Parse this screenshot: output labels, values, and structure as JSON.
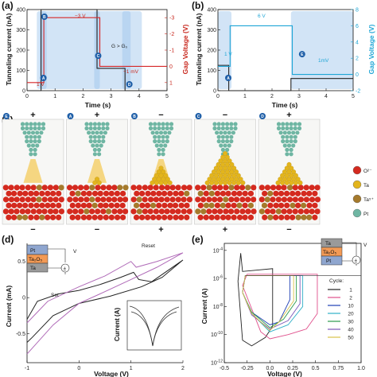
{
  "panels": {
    "a": {
      "label": "(a)",
      "ylabel_left": "Tunneling current (nA)",
      "ylabel_right": "Gap Voltage (V)",
      "xlabel": "Time (s)",
      "annotations": {
        "v_high": "−3 V",
        "v_low": "1 V",
        "v_mid": "−1 mV",
        "gap": "G > G₀"
      },
      "steps": [
        "A",
        "B",
        "C",
        "D"
      ]
    },
    "b": {
      "label": "(b)",
      "ylabel_left": "Tunneling current (nA)",
      "ylabel_right": "Gap Voltage (V)",
      "xlabel": "Time (s)",
      "annotations": {
        "v_high": "6 V",
        "v_low": "1 V",
        "v_mid": "1mV"
      },
      "steps": [
        "A",
        "E"
      ]
    },
    "c": {
      "label": "(c)",
      "frames": [
        {
          "step": "E",
          "top": "+",
          "bottom": "−"
        },
        {
          "step": "A",
          "top": "+",
          "bottom": "−"
        },
        {
          "step": "B",
          "top": "−",
          "bottom": "+"
        },
        {
          "step": "C",
          "top": "−",
          "bottom": "+"
        },
        {
          "step": "D",
          "top": "+",
          "bottom": "−"
        }
      ],
      "legend": [
        {
          "label": "O²⁻",
          "color": "#d42a1f"
        },
        {
          "label": "Ta",
          "color": "#e3b51c"
        },
        {
          "label": "Ta⁵⁺",
          "color": "#a57a2c"
        },
        {
          "label": "Pt",
          "color": "#6fb6a3"
        }
      ]
    },
    "d": {
      "label": "(d)",
      "ylabel": "Current (mA)",
      "xlabel": "Voltage (V)",
      "ann_reset": "Reset",
      "ann_set": "Set",
      "inset_ylabel": "Current (A)",
      "stack": [
        "Pt",
        "Ta₂O₅",
        "Ta"
      ],
      "source_symbol": "±",
      "meter_symbol": "V"
    },
    "e": {
      "label": "(e)",
      "ylabel": "Current (A)",
      "xlabel": "Voltage (V)",
      "legend_title": "Cycle:",
      "stack": [
        "Ta",
        "Ta₂O₅",
        "Pt"
      ],
      "source_symbol": "±",
      "meter_symbol": "V"
    }
  },
  "chart_data": [
    {
      "type": "line",
      "title": "",
      "xlabel": "Time (s)",
      "ylabel": "Tunneling current (nA)",
      "y2label": "Gap Voltage (V)",
      "xlim": [
        0,
        5
      ],
      "ylim": [
        0,
        400
      ],
      "y2lim": [
        -3.5,
        1.5
      ],
      "xticks": [
        0,
        1,
        2,
        3,
        4,
        5
      ],
      "yticks": [
        0,
        100,
        200,
        300,
        400
      ],
      "y2ticks": [
        -3,
        -2,
        -1,
        0,
        1
      ],
      "y2ticks_reversed": true,
      "series": [
        {
          "color": "#222222",
          "x": [
            0,
            0.5,
            0.5,
            2.5,
            2.5,
            3.5,
            3.5,
            5
          ],
          "y": [
            0,
            0,
            400,
            400,
            110,
            110,
            0,
            0
          ]
        },
        {
          "color": "#d62728",
          "x": [
            0,
            0.6,
            0.6,
            2.6,
            2.6,
            3.6,
            3.6,
            5
          ],
          "y": [
            1,
            1,
            -3,
            -3,
            0,
            0,
            0,
            0
          ]
        }
      ],
      "regions": [
        {
          "label": "A",
          "x": [
            0.35,
            0.7
          ]
        },
        {
          "label": "B",
          "x": [
            0.45,
            2.6
          ]
        },
        {
          "label": "C",
          "x": [
            2.4,
            3.7
          ]
        },
        {
          "label": "D",
          "x": [
            3.4,
            4.1
          ]
        }
      ]
    },
    {
      "type": "line",
      "title": "",
      "xlabel": "Time (s)",
      "ylabel": "Tunneling current (nA)",
      "y2label": "Gap Voltage (V)",
      "xlim": [
        0,
        5
      ],
      "ylim": [
        0,
        400
      ],
      "y2lim": [
        -2,
        8
      ],
      "xticks": [
        0,
        1,
        2,
        3,
        4,
        5
      ],
      "yticks": [
        0,
        100,
        200,
        300,
        400
      ],
      "y2ticks": [
        -2,
        0,
        2,
        4,
        6,
        8
      ],
      "series": [
        {
          "color": "#222222",
          "x": [
            0,
            0.4,
            0.4,
            2.7,
            2.7,
            5
          ],
          "y": [
            125,
            125,
            0,
            0,
            60,
            60
          ]
        },
        {
          "color": "#1fa6d6",
          "x": [
            0,
            0.45,
            0.45,
            2.75,
            2.75,
            5
          ],
          "y": [
            1,
            1,
            6,
            6,
            0,
            0
          ]
        }
      ],
      "regions": [
        {
          "label": "A",
          "x": [
            0,
            0.5
          ]
        },
        {
          "label": "E",
          "x": [
            2.7,
            5
          ]
        }
      ]
    },
    {
      "type": "line",
      "title": "",
      "xlabel": "Voltage (V)",
      "ylabel": "Current (mA)",
      "xlim": [
        -1,
        2
      ],
      "ylim": [
        -0.9,
        0.75
      ],
      "xticks": [
        -1,
        0,
        1,
        2
      ],
      "yticks": [
        -0.5,
        0,
        0.5
      ],
      "series": [
        {
          "color": "#222222",
          "x": [
            -1,
            -0.8,
            -0.4,
            0,
            0.4,
            0.8,
            1.05,
            1.15,
            1.4,
            2,
            1.6,
            1.2,
            0.6,
            0,
            -0.5,
            -0.9,
            -1
          ],
          "y": [
            -0.3,
            -0.05,
            0.05,
            0.1,
            0.18,
            0.28,
            0.35,
            0.25,
            0.22,
            0.52,
            0.28,
            0.15,
            0.02,
            -0.08,
            -0.25,
            -0.55,
            -0.62
          ]
        },
        {
          "color": "#b06bb8",
          "x": [
            -1,
            -0.6,
            0,
            0.5,
            1.0,
            1.1,
            1.5,
            2,
            1.5,
            1,
            0.4,
            0,
            -0.5,
            -1
          ],
          "y": [
            -0.35,
            -0.05,
            0.15,
            0.3,
            0.5,
            0.42,
            0.5,
            0.62,
            0.42,
            0.25,
            0.05,
            -0.08,
            -0.38,
            -0.78
          ]
        }
      ]
    },
    {
      "type": "line",
      "title": "",
      "xlabel": "Voltage (V)",
      "ylabel": "Current (A)",
      "log_y": true,
      "xlim": [
        -0.5,
        1.0
      ],
      "ylim_exp": [
        -12,
        -3.5
      ],
      "xticks": [
        -0.5,
        -0.25,
        0,
        0.25,
        0.5,
        0.75,
        1.0
      ],
      "yticks_exp": [
        -12,
        -10,
        -8,
        -6,
        -4
      ],
      "legend_position": "right",
      "series": [
        {
          "name": "1",
          "color": "#222222",
          "x": [
            -0.35,
            -0.32,
            -0.3,
            0.03,
            0.03,
            -0.05,
            -0.2,
            -0.3,
            -0.35
          ],
          "y_exp": [
            -6.2,
            -4.2,
            -5.5,
            -5.3,
            -9.4,
            -10.2,
            -10.8,
            -10.4,
            -6.2
          ]
        },
        {
          "name": "2",
          "color": "#e0508c",
          "x": [
            -0.3,
            -0.25,
            0.52,
            0.52,
            0.4,
            0.2,
            0,
            -0.1,
            -0.3
          ],
          "y_exp": [
            -6.5,
            -5.7,
            -5.7,
            -8.5,
            -9.6,
            -10,
            -10.3,
            -9.8,
            -6.5
          ]
        },
        {
          "name": "10",
          "color": "#1f3fb4",
          "x": [
            -0.3,
            -0.27,
            0.22,
            0.22,
            0.1,
            0,
            -0.2,
            -0.3
          ],
          "y_exp": [
            -7,
            -5.8,
            -5.8,
            -7.5,
            -9.1,
            -9.3,
            -8.4,
            -7
          ]
        },
        {
          "name": "20",
          "color": "#30b0c8",
          "x": [
            -0.3,
            -0.27,
            0.36,
            0.36,
            0.2,
            0,
            -0.2,
            -0.3
          ],
          "y_exp": [
            -7,
            -5.8,
            -5.8,
            -8,
            -9.3,
            -9.8,
            -8.5,
            -7
          ]
        },
        {
          "name": "30",
          "color": "#2c9b4c",
          "x": [
            -0.3,
            -0.27,
            0.29,
            0.29,
            0.15,
            0,
            -0.2,
            -0.3
          ],
          "y_exp": [
            -7,
            -5.8,
            -5.8,
            -7.6,
            -8.9,
            -9.5,
            -8.4,
            -7
          ]
        },
        {
          "name": "40",
          "color": "#7b55b8",
          "x": [
            -0.3,
            -0.27,
            0.33,
            0.33,
            0.2,
            0,
            -0.2,
            -0.3
          ],
          "y_exp": [
            -7,
            -5.8,
            -5.8,
            -7.8,
            -9,
            -9.6,
            -8.6,
            -7
          ]
        },
        {
          "name": "50",
          "color": "#d8c24a",
          "x": [
            -0.3,
            -0.27,
            0.26,
            0.26,
            0.1,
            0,
            -0.2,
            -0.3
          ],
          "y_exp": [
            -7,
            -5.8,
            -5.8,
            -7.6,
            -9.1,
            -9.7,
            -8.5,
            -7
          ]
        }
      ]
    }
  ]
}
